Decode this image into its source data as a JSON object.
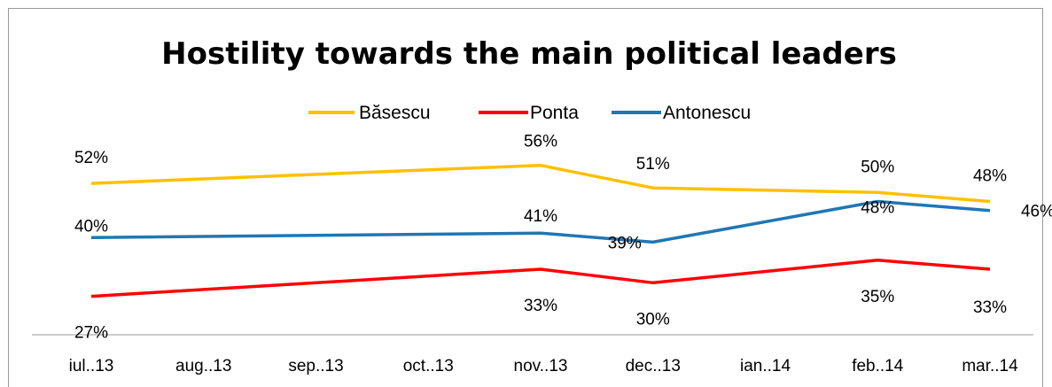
{
  "chart_data": {
    "type": "line",
    "title": "Hostility towards the main political leaders",
    "xlabel": "",
    "ylabel": "",
    "categories": [
      "iul..13",
      "aug..13",
      "sep..13",
      "oct..13",
      "nov..13",
      "dec..13",
      "ian..14",
      "feb..14",
      "mar..14"
    ],
    "ylim": [
      0,
      100
    ],
    "grid": false,
    "legend_position": "top",
    "series": [
      {
        "name": "Băsescu",
        "color": "#FFC000",
        "values": [
          52,
          null,
          null,
          null,
          56,
          51,
          null,
          50,
          48
        ],
        "labels": [
          "52%",
          null,
          null,
          null,
          "56%",
          "51%",
          null,
          "50%",
          "48%"
        ]
      },
      {
        "name": "Ponta",
        "color": "#FF0000",
        "values": [
          27,
          null,
          null,
          null,
          33,
          30,
          null,
          35,
          33
        ],
        "labels": [
          "27%",
          null,
          null,
          null,
          "33%",
          "30%",
          null,
          "35%",
          "33%"
        ]
      },
      {
        "name": "Antonescu",
        "color": "#1F77B4",
        "values": [
          40,
          null,
          null,
          null,
          41,
          39,
          null,
          48,
          46
        ],
        "labels": [
          "40%",
          null,
          null,
          null,
          "41%",
          "39%",
          null,
          "48%",
          "46%"
        ]
      }
    ]
  }
}
